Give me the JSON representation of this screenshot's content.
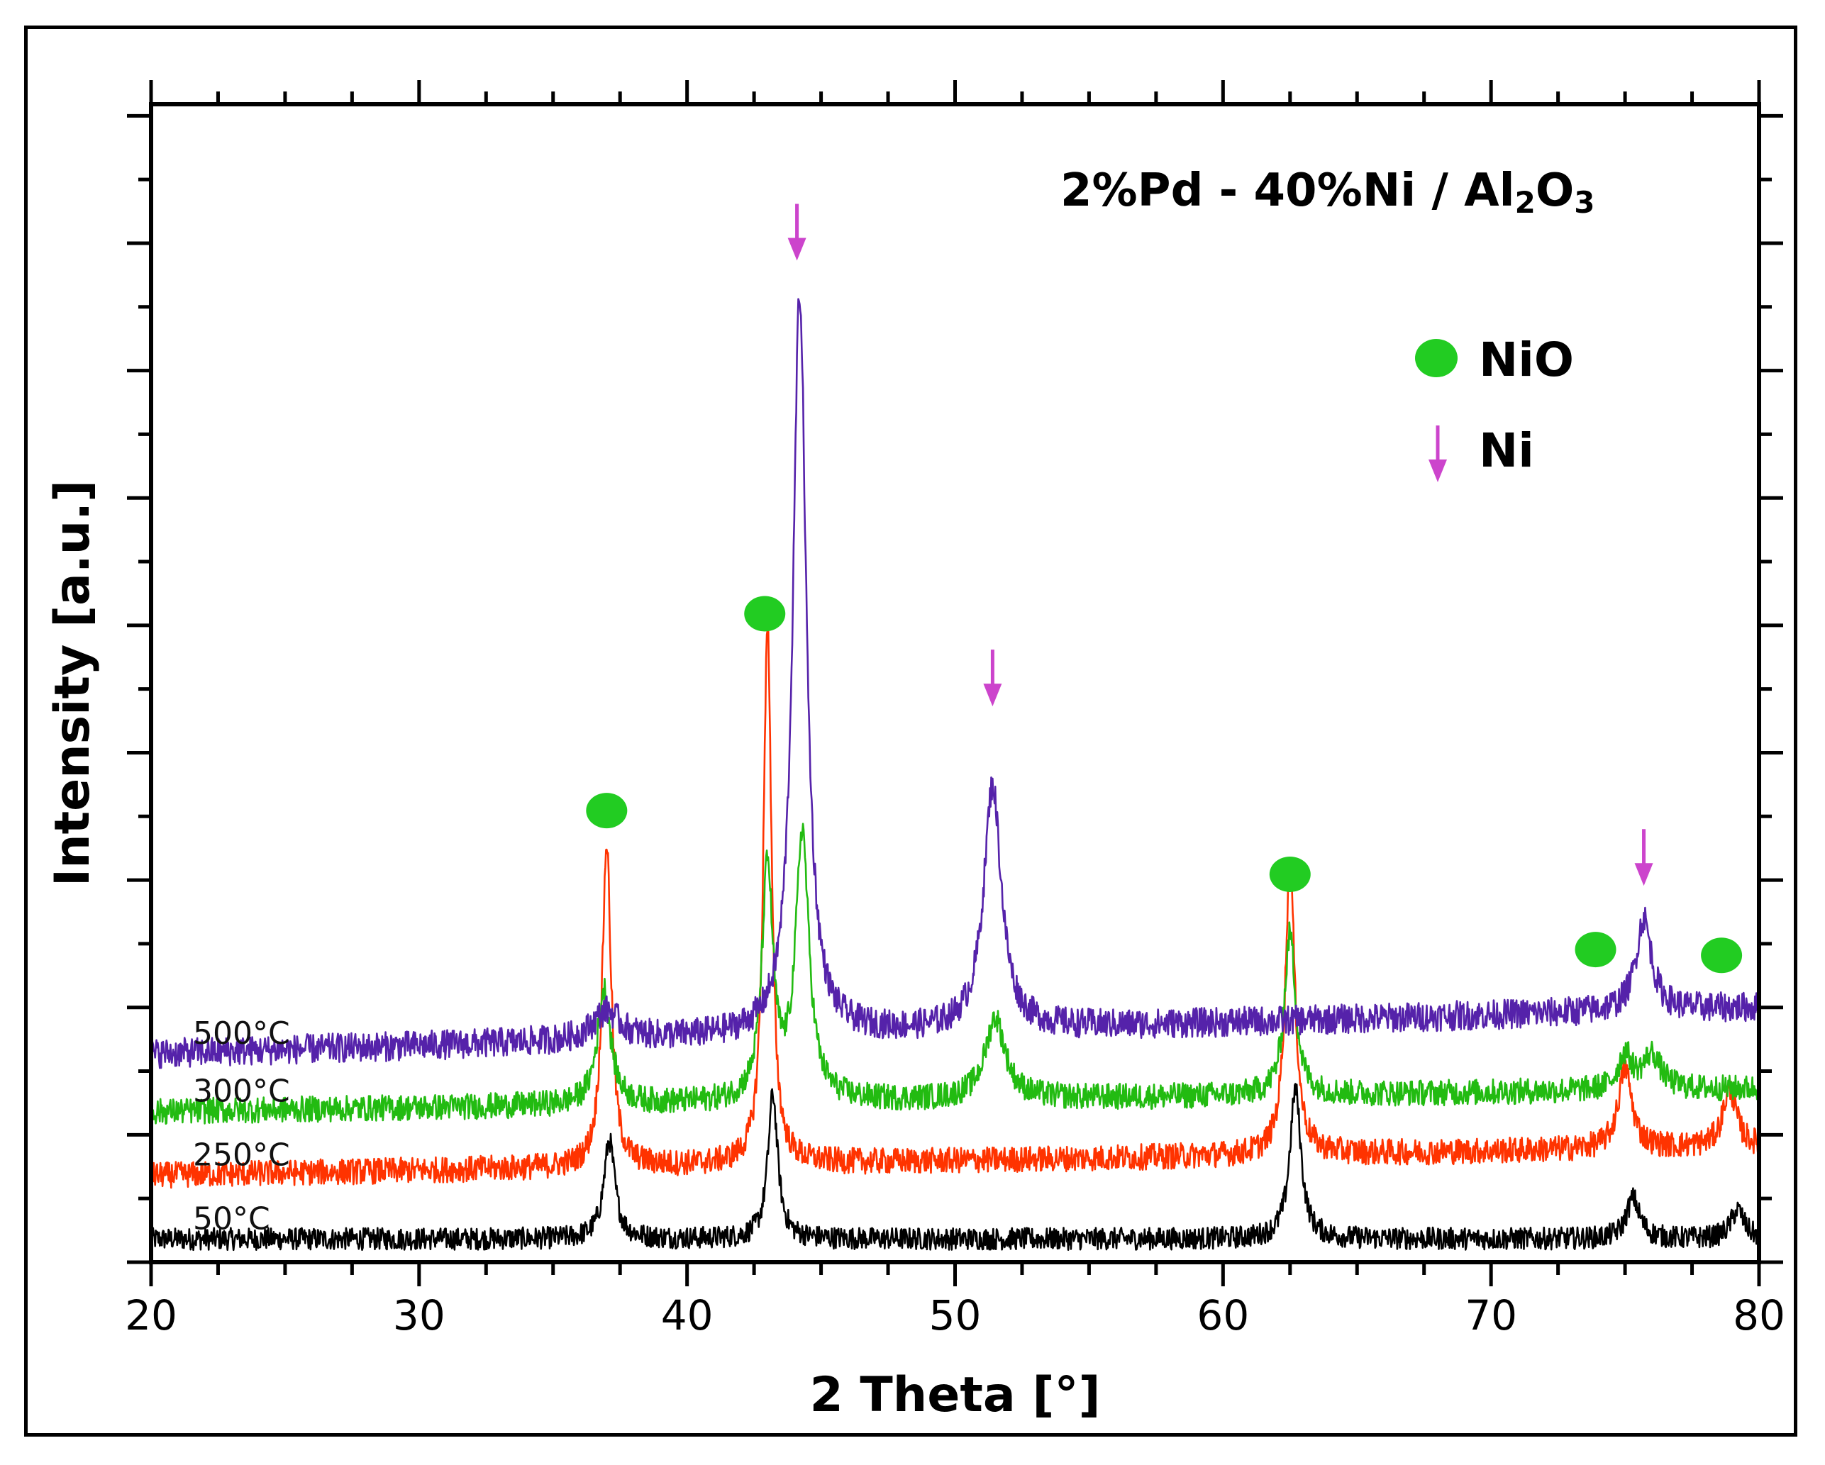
{
  "chart_data": {
    "type": "line",
    "title_main": "2%Pd - 40%Ni / Al",
    "title_sub1": "2",
    "title_mid": "O",
    "title_sub2": "3",
    "xlabel": "2 Theta [°]",
    "ylabel": "Intensity [a.u.]",
    "xlim": [
      20,
      80
    ],
    "ylim": [
      0,
      100
    ],
    "xticks": [
      20,
      30,
      40,
      50,
      60,
      70,
      80
    ],
    "xtick_labels": [
      "20",
      "30",
      "40",
      "50",
      "60",
      "70",
      "80"
    ],
    "legend": [
      {
        "label": "NiO",
        "marker": "circle",
        "color": "#22cc22"
      },
      {
        "label": "Ni",
        "marker": "arrow",
        "color": "#cc44cc"
      }
    ],
    "series": [
      {
        "name": "50°C",
        "color": "#000000",
        "baseline_start": 2.0,
        "baseline_end": 2.0,
        "noise": 0.6,
        "peaks": [
          [
            37.1,
            8.5,
            0.25
          ],
          [
            43.2,
            12.5,
            0.22
          ],
          [
            62.7,
            13.0,
            0.25
          ],
          [
            75.3,
            3.5,
            0.3
          ],
          [
            79.2,
            2.5,
            0.3
          ]
        ]
      },
      {
        "name": "250°C",
        "color": "#ff3300",
        "baseline_start": 7.5,
        "baseline_end": 10.0,
        "noise": 0.7,
        "peaks": [
          [
            37.0,
            28.0,
            0.2
          ],
          [
            43.0,
            47.0,
            0.18
          ],
          [
            62.5,
            25.0,
            0.22
          ],
          [
            75.0,
            7.0,
            0.3
          ],
          [
            78.9,
            5.0,
            0.3
          ]
        ]
      },
      {
        "name": "300°C",
        "color": "#22bb11",
        "baseline_start": 13.0,
        "baseline_end": 15.0,
        "noise": 0.7,
        "peaks": [
          [
            36.9,
            10.0,
            0.3
          ],
          [
            43.0,
            20.0,
            0.25
          ],
          [
            44.3,
            23.0,
            0.3
          ],
          [
            51.5,
            7.0,
            0.45
          ],
          [
            62.5,
            14.0,
            0.25
          ],
          [
            75.0,
            3.0,
            0.3
          ],
          [
            76.0,
            3.0,
            0.4
          ]
        ]
      },
      {
        "name": "500°C",
        "color": "#5522aa",
        "baseline_start": 18.0,
        "baseline_end": 22.0,
        "noise": 0.8,
        "peaks": [
          [
            44.2,
            64.0,
            0.3
          ],
          [
            51.4,
            21.0,
            0.4
          ],
          [
            75.7,
            8.0,
            0.35
          ],
          [
            37.0,
            2.5,
            0.6
          ]
        ]
      }
    ],
    "annotations": {
      "nio_markers": [
        [
          37.0,
          39.0
        ],
        [
          42.9,
          56.0
        ],
        [
          62.5,
          33.5
        ],
        [
          73.9,
          27.0
        ],
        [
          78.6,
          26.5
        ]
      ],
      "ni_arrows": [
        [
          44.1,
          86.5
        ],
        [
          51.4,
          48.0
        ],
        [
          75.7,
          32.5
        ]
      ]
    }
  }
}
